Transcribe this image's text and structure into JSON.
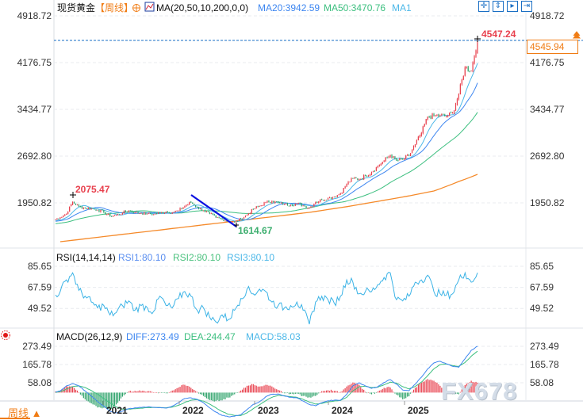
{
  "header": {
    "instrument": "现货黄金",
    "period": "【周线】",
    "ma_params": "MA(20,50,10,200,0,0)",
    "ma20": "MA20:3942.59",
    "ma50": "MA50:3470.76",
    "ma10_truncated": "MA1"
  },
  "toolbar": {
    "icons": [
      "crosshair-icon",
      "fit-vertical-icon",
      "play-marker-icon",
      "goto-end-icon"
    ]
  },
  "price_tag": "4545.94",
  "rsi": {
    "params": "RSI(14,14,14)",
    "rsi1": "RSI1:80.10",
    "rsi2": "RSI2:80.10",
    "rsi3": "RSI3:80.10"
  },
  "macd": {
    "params": "MACD(26,12,9)",
    "diff": "DIFF:273.49",
    "dea": "DEA:244.47",
    "macd": "MACD:58.03"
  },
  "bottom": {
    "period_label": "周线",
    "period_arrow": "▲"
  },
  "watermark": "FX678",
  "colors": {
    "up": "#e8414e",
    "down": "#2fa36b",
    "ma10": "#4db8e8",
    "ma20": "#3d86f0",
    "ma50": "#3cbf7f",
    "ma200": "#f58a2a",
    "drawing": "#0a10e0",
    "tag": "#f07c14"
  },
  "chart_data": [
    {
      "type": "candlestick",
      "title": "现货黄金 【周线】",
      "x_ticks": [
        "2021",
        "2022",
        "2023",
        "2024",
        "2025"
      ],
      "y_ticks": [
        "4918.72",
        "4176.75",
        "3434.77",
        "2692.80",
        "1950.82"
      ],
      "ylim": [
        1334,
        4918.72
      ],
      "annotations": {
        "high": "4547.24",
        "prior_high": "2075.47",
        "low": "1614.67",
        "last": "4545.94"
      },
      "monthly_closes": [
        1720,
        1780,
        1970,
        1890,
        1870,
        1860,
        1840,
        1800,
        1740,
        1760,
        1790,
        1830,
        1800,
        1790,
        1780,
        1770,
        1790,
        1810,
        1800,
        1830,
        1900,
        1960,
        1880,
        1830,
        1780,
        1720,
        1690,
        1660,
        1640,
        1700,
        1760,
        1850,
        1900,
        1960,
        1980,
        1950,
        1930,
        1920,
        1940,
        1910,
        1870,
        1960,
        2000,
        2030,
        2050,
        2100,
        2250,
        2340,
        2330,
        2380,
        2440,
        2530,
        2620,
        2710,
        2620,
        2640,
        2700,
        2880,
        3060,
        3320,
        3330,
        3340,
        3320,
        3380,
        3680,
        4100,
        4050,
        4545.94
      ],
      "ma200": [
        1334,
        1346,
        1357,
        1369,
        1381,
        1392,
        1404,
        1416,
        1427,
        1439,
        1451,
        1462,
        1474,
        1485,
        1497,
        1509,
        1520,
        1532,
        1544,
        1555,
        1567,
        1579,
        1590,
        1602,
        1614,
        1625,
        1637,
        1649,
        1660,
        1672,
        1684,
        1695,
        1707,
        1718,
        1730,
        1742,
        1753,
        1765,
        1777,
        1788,
        1800,
        1815,
        1830,
        1845,
        1860,
        1875,
        1890,
        1907,
        1924,
        1941,
        1958,
        1975,
        1992,
        2009,
        2026,
        2044,
        2062,
        2081,
        2100,
        2120,
        2140,
        2175,
        2212,
        2250,
        2290,
        2325,
        2363,
        2403
      ]
    },
    {
      "type": "line",
      "title": "RSI(14,14,14)",
      "y_ticks": [
        "85.65",
        "67.59",
        "49.52"
      ],
      "series": [
        {
          "name": "RSI1",
          "values": [
            64,
            74,
            80,
            65,
            60,
            55,
            50,
            52,
            44,
            46,
            52,
            56,
            48,
            52,
            50,
            47,
            60,
            52,
            50,
            58,
            64,
            60,
            48,
            50,
            42,
            38,
            44,
            40,
            48,
            58,
            66,
            62,
            66,
            64,
            55,
            52,
            50,
            52,
            55,
            48,
            36,
            55,
            60,
            57,
            54,
            60,
            74,
            72,
            62,
            64,
            64,
            70,
            76,
            80,
            57,
            56,
            60,
            72,
            74,
            78,
            64,
            62,
            61,
            62,
            74,
            80,
            72,
            80.1
          ]
        }
      ]
    },
    {
      "type": "line",
      "title": "MACD(26,12,9)",
      "y_ticks": [
        "273.49",
        "165.78",
        "58.08"
      ],
      "series": [
        {
          "name": "DIFF",
          "values": [
            10,
            40,
            53,
            40,
            10,
            -20,
            -54,
            -80,
            -110,
            -120,
            -110,
            -95,
            -90,
            -88,
            -85,
            -87,
            -88,
            -92,
            -80,
            -60,
            -35,
            -31,
            -40,
            -60,
            -90,
            -115,
            -135,
            -143,
            -140,
            -130,
            -100,
            -70,
            -54,
            -25,
            -10,
            -8,
            -20,
            -28,
            -31,
            -50,
            -70,
            -78,
            -60,
            -48,
            -45,
            -45,
            -10,
            40,
            58,
            40,
            25,
            35,
            60,
            77,
            50,
            15,
            11,
            50,
            91,
            140,
            175,
            185,
            170,
            155,
            150,
            200,
            250,
            273.49
          ]
        },
        {
          "name": "DEA",
          "values": [
            5,
            20,
            35,
            40,
            30,
            12,
            -10,
            -35,
            -60,
            -85,
            -98,
            -98,
            -95,
            -92,
            -89,
            -88,
            -88,
            -90,
            -86,
            -75,
            -58,
            -45,
            -42,
            -50,
            -68,
            -90,
            -112,
            -128,
            -135,
            -136,
            -120,
            -95,
            -72,
            -48,
            -28,
            -16,
            -18,
            -24,
            -28,
            -40,
            -56,
            -68,
            -64,
            -55,
            -50,
            -47,
            -28,
            10,
            35,
            38,
            30,
            32,
            46,
            62,
            56,
            35,
            22,
            36,
            62,
            100,
            140,
            165,
            168,
            160,
            155,
            178,
            215,
            244.47
          ]
        }
      ]
    }
  ]
}
